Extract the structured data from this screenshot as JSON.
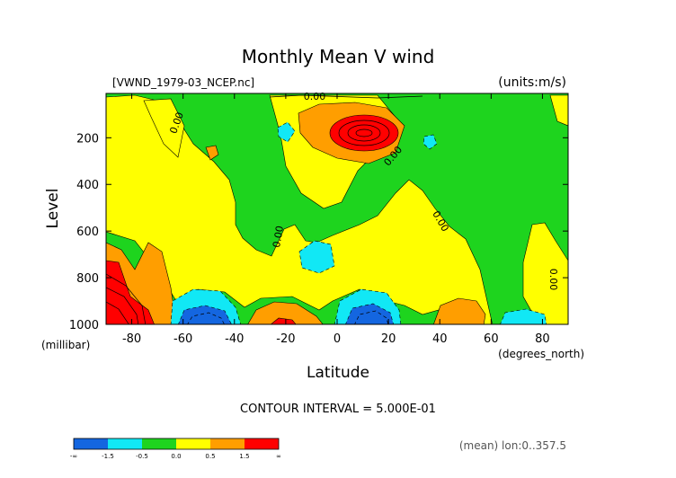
{
  "chart_data": {
    "type": "heatmap",
    "title": "Monthly Mean V wind",
    "file_label": "[VWND_1979-03_NCEP.nc]",
    "units_label": "(units:m/s)",
    "xlabel": "Latitude",
    "x_unit": "(degrees_north)",
    "ylabel": "Level",
    "y_unit": "(millibar)",
    "xlim": [
      -90,
      90
    ],
    "ylim": [
      1000,
      10
    ],
    "x_ticks": [
      -80,
      -60,
      -40,
      -20,
      0,
      20,
      40,
      60,
      80
    ],
    "y_ticks": [
      200,
      400,
      600,
      800,
      1000
    ],
    "contour_interval_text": "CONTOUR INTERVAL = 5.000E-01",
    "zero_labels": [
      "0.00",
      "0.00",
      "0.00",
      "0.00",
      "0.00",
      "0.00"
    ],
    "footer": "(mean) lon:0..357.5",
    "colorbar": {
      "colors": [
        "#1466e0",
        "#11e8f5",
        "#1ed41e",
        "#ffff00",
        "#ff9e00",
        "#ff0000"
      ],
      "labels": [
        "-∞",
        "-1.5",
        "-0.5",
        "0.0",
        "0.5",
        "1.5",
        "∞"
      ]
    },
    "features": [
      {
        "name": "upper-tropical-max",
        "lat": 10,
        "level": 165,
        "value": 3.0
      },
      {
        "name": "south-polar-surface-max",
        "lat": -82,
        "level": 950,
        "value": 2.5
      },
      {
        "name": "southern-midlat-surface-min",
        "lat": -52,
        "level": 960,
        "value": -2.0
      },
      {
        "name": "subtropical-surface-max",
        "lat": -20,
        "level": 975,
        "value": 1.5
      },
      {
        "name": "equatorial-surface-min",
        "lat": 13,
        "level": 960,
        "value": -2.0
      },
      {
        "name": "tropical-mid-min",
        "lat": -3,
        "level": 720,
        "value": -0.7
      },
      {
        "name": "upper-min-left",
        "lat": -20,
        "level": 170,
        "value": -0.6
      },
      {
        "name": "upper-min-right",
        "lat": 35,
        "level": 180,
        "value": -0.6
      },
      {
        "name": "south-upper-max",
        "lat": -52,
        "level": 260,
        "value": 0.6
      },
      {
        "name": "north-surface-max",
        "lat": 47,
        "level": 950,
        "value": 0.7
      },
      {
        "name": "north-polar-surface-min",
        "lat": 73,
        "level": 970,
        "value": -0.6
      }
    ]
  }
}
